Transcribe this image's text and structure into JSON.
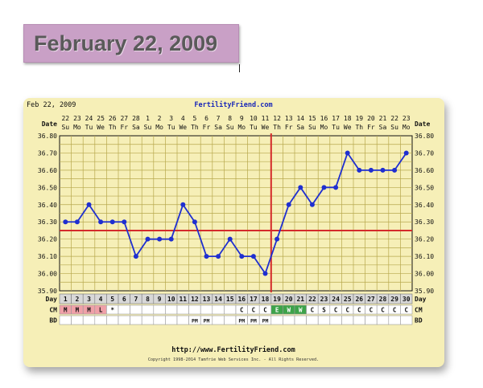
{
  "slide": {
    "title": "February 22, 2009"
  },
  "chart_data": {
    "type": "line",
    "header_date": "Feb 22, 2009",
    "site_label": "FertilityFriend.com",
    "footer_url": "http://www.FertilityFriend.com",
    "copyright": "Copyright 1998-2014 Tamfrie Web Services Inc. - All Rights Reserved.",
    "row_labels": {
      "date": "Date",
      "day": "Day",
      "cm": "CM",
      "bd": "BD"
    },
    "dates": [
      "22",
      "23",
      "24",
      "25",
      "26",
      "27",
      "28",
      "1",
      "2",
      "3",
      "4",
      "5",
      "6",
      "7",
      "8",
      "9",
      "10",
      "11",
      "12",
      "13",
      "14",
      "15",
      "16",
      "17",
      "18",
      "19",
      "20",
      "21",
      "22",
      "23"
    ],
    "weekdays": [
      "Su",
      "Mo",
      "Tu",
      "We",
      "Th",
      "Fr",
      "Sa",
      "Su",
      "Mo",
      "Tu",
      "We",
      "Th",
      "Fr",
      "Sa",
      "Su",
      "Mo",
      "Tu",
      "We",
      "Th",
      "Fr",
      "Sa",
      "Su",
      "Mo",
      "Tu",
      "We",
      "Th",
      "Fr",
      "Sa",
      "Su",
      "Mo"
    ],
    "days": [
      1,
      2,
      3,
      4,
      5,
      6,
      7,
      8,
      9,
      10,
      11,
      12,
      13,
      14,
      15,
      16,
      17,
      18,
      19,
      20,
      21,
      22,
      23,
      24,
      25,
      26,
      27,
      28,
      29,
      30
    ],
    "temps": [
      36.3,
      36.3,
      36.4,
      36.3,
      36.3,
      36.3,
      36.1,
      36.2,
      36.2,
      36.2,
      36.4,
      36.3,
      36.1,
      36.1,
      36.2,
      36.1,
      36.1,
      36.0,
      36.2,
      36.4,
      36.5,
      36.4,
      36.5,
      36.5,
      36.7,
      36.6,
      36.6,
      36.6,
      36.6,
      36.7
    ],
    "y_ticks": [
      "36.80",
      "36.70",
      "36.60",
      "36.50",
      "36.40",
      "36.30",
      "36.20",
      "36.10",
      "36.00",
      "35.90"
    ],
    "ylim": [
      35.9,
      36.8
    ],
    "coverline": 36.25,
    "ovulation_day": 19,
    "cm": [
      "M",
      "M",
      "M",
      "L",
      "*",
      "",
      "",
      "",
      "",
      "",
      "",
      "",
      "",
      "",
      "",
      "C",
      "C",
      "C",
      "E",
      "W",
      "W",
      "C",
      "S",
      "C",
      "C",
      "C",
      "C",
      "C",
      "C",
      "C"
    ],
    "bd": [
      "",
      "",
      "",
      "",
      "",
      "",
      "",
      "",
      "",
      "",
      "",
      "PM",
      "PM",
      "",
      "",
      "PM",
      "PM",
      "PM",
      "",
      "",
      "",
      "",
      "",
      "",
      "",
      "",
      "",
      "",
      "",
      ""
    ],
    "colors": {
      "background": "#f6efb7",
      "grid": "#b7a84d",
      "line": "#1f2fd0",
      "point": "#1f2fd0",
      "red_line": "#d42b2b",
      "cm_m": "#f0a0a8",
      "cm_e": "#3da34a",
      "cm_w": "#3da34a",
      "day_bg": "#d8d8d8",
      "cell_bg": "#ffffff"
    }
  }
}
